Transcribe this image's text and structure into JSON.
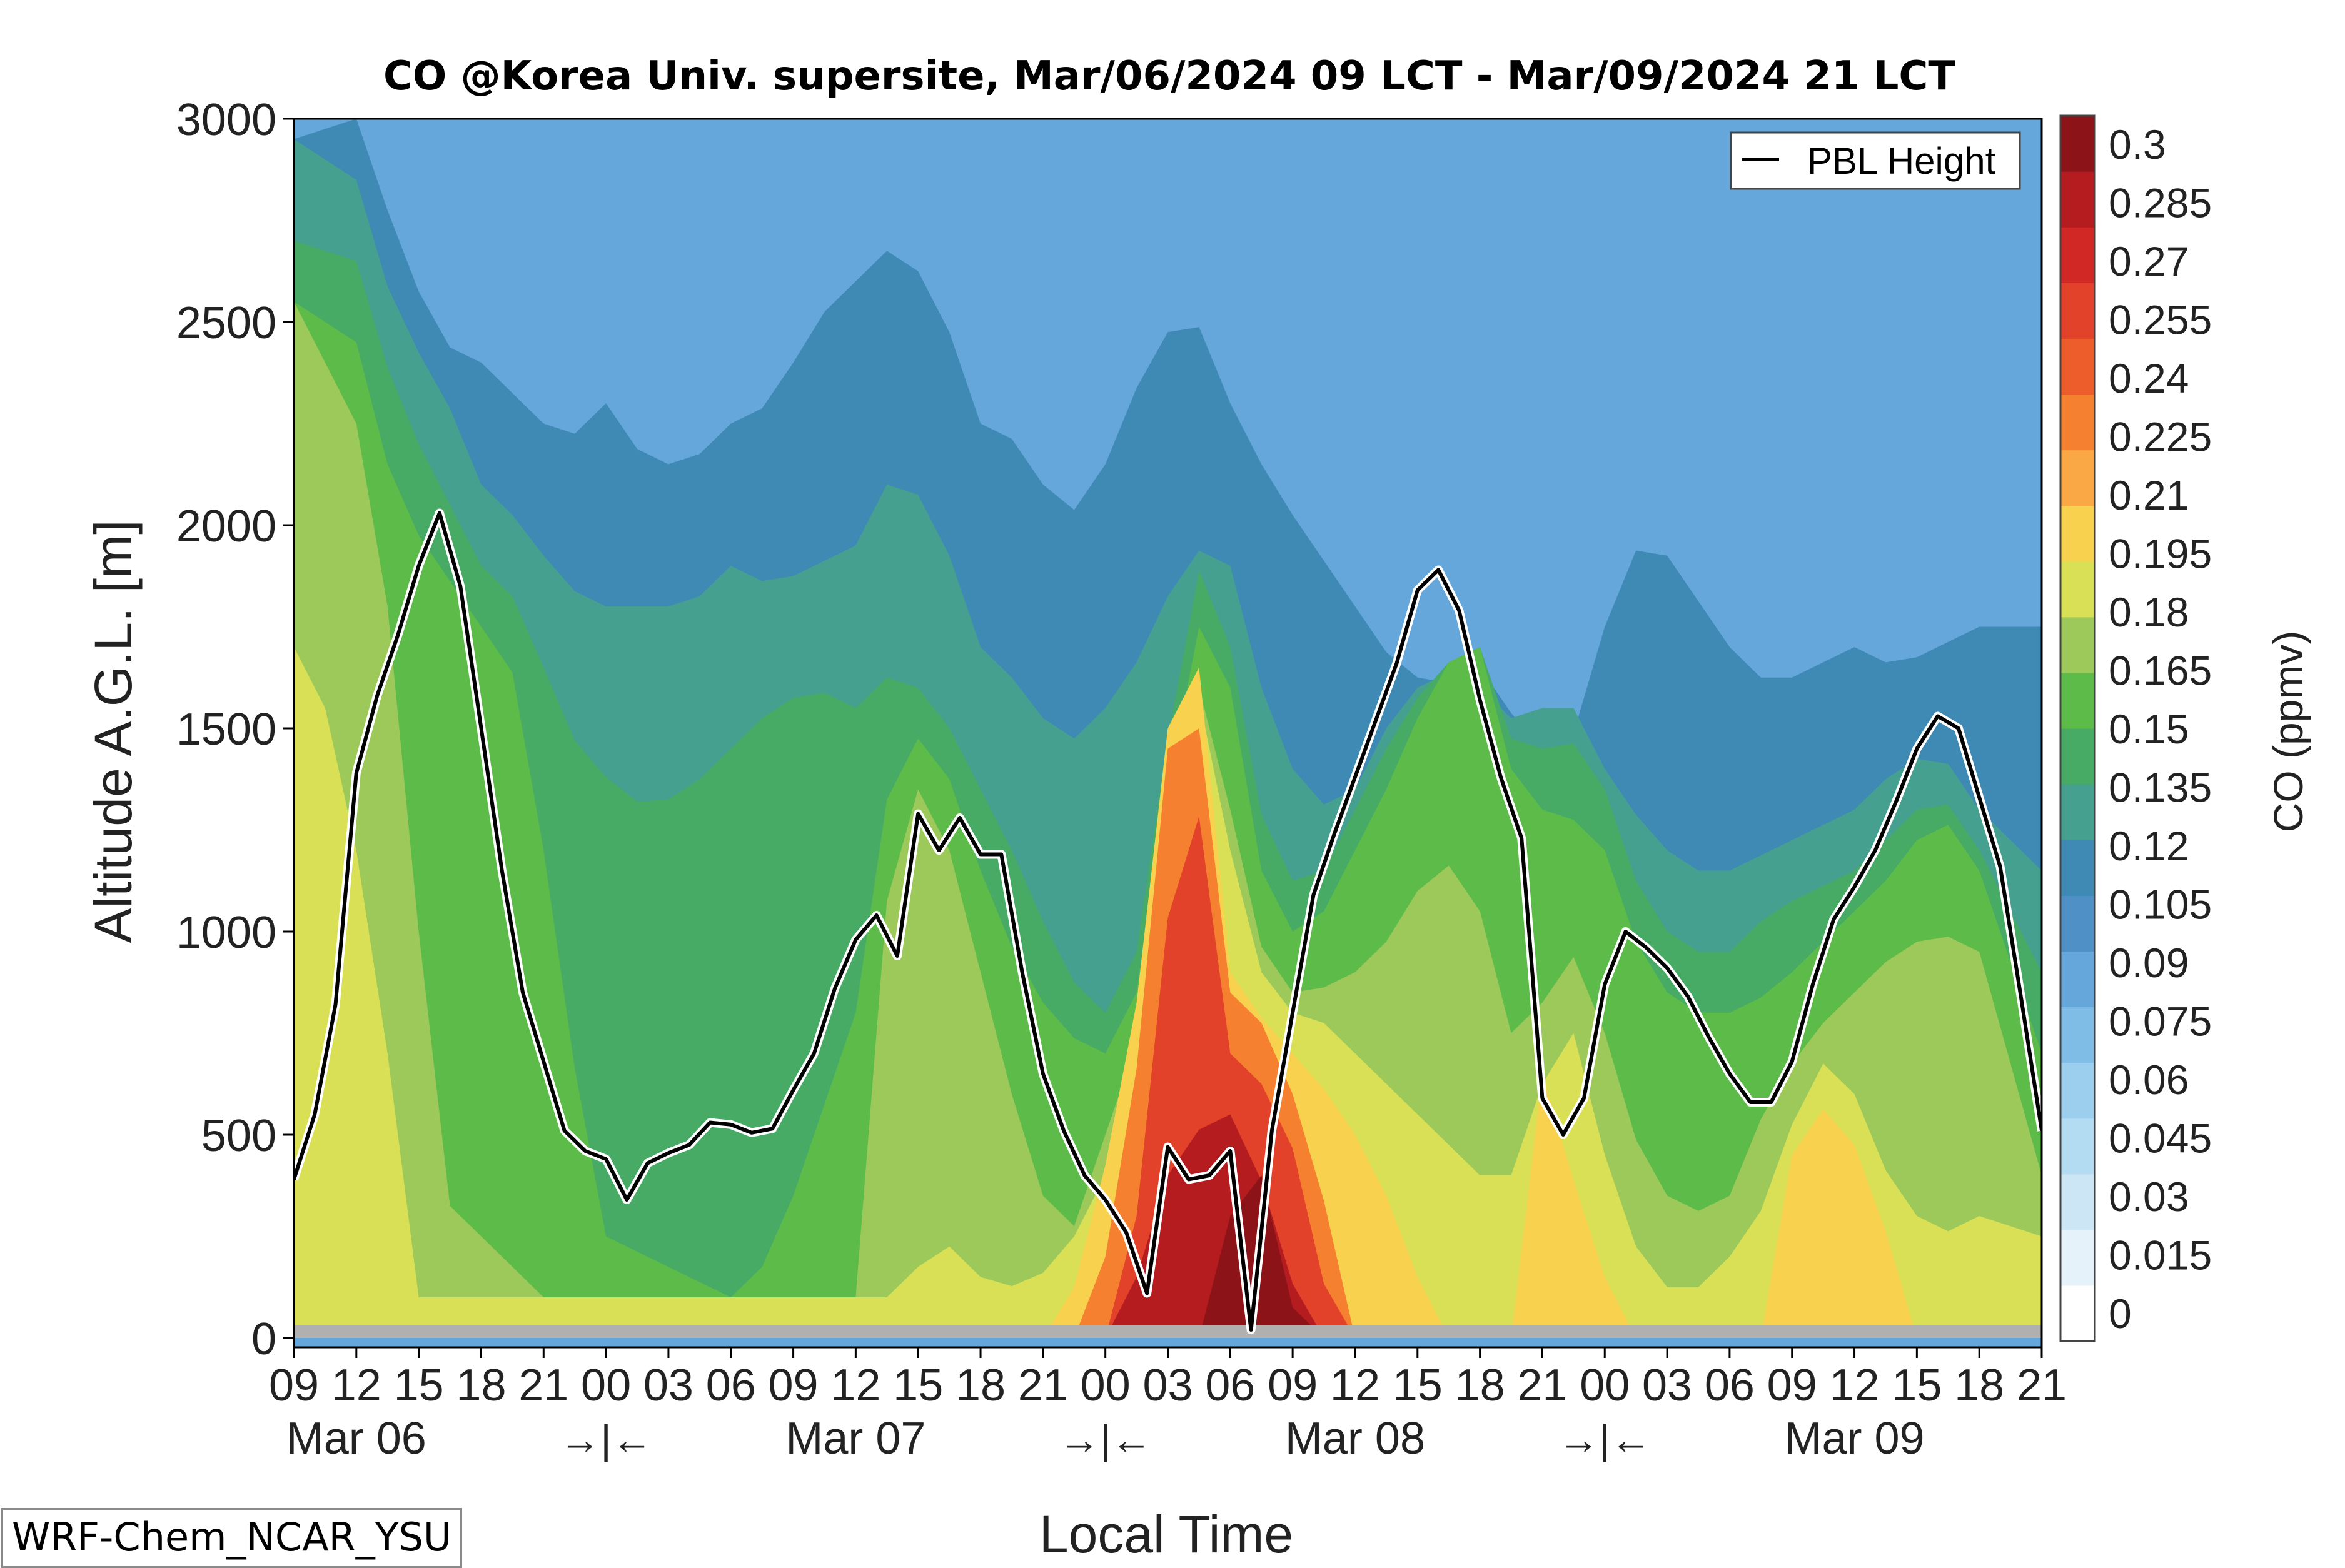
{
  "chart_data": {
    "type": "heatmap",
    "title": "CO @Korea Univ. supersite, Mar/06/2024 09 LCT - Mar/09/2024 21 LCT",
    "xlabel": "Local Time",
    "ylabel": "Altitude A.G.L. [m]",
    "ylim": [
      0,
      3000
    ],
    "y_ticks": [
      "0",
      "500",
      "1000",
      "1500",
      "2000",
      "2500",
      "3000"
    ],
    "x_tick_labels": [
      "09",
      "12",
      "15",
      "18",
      "21",
      "00",
      "03",
      "06",
      "09",
      "12",
      "15",
      "18",
      "21",
      "00",
      "03",
      "06",
      "09",
      "12",
      "15",
      "18",
      "21",
      "00",
      "03",
      "06",
      "09",
      "12",
      "15",
      "18",
      "21"
    ],
    "date_labels": [
      "Mar 06",
      "Mar 07",
      "Mar 08",
      "Mar 09"
    ],
    "day_separators": [
      "→|←",
      "→|←",
      "→|←"
    ],
    "colorbar": {
      "label": "CO (ppmv)",
      "tick_labels": [
        "0",
        "0.015",
        "0.03",
        "0.045",
        "0.06",
        "0.075",
        "0.09",
        "0.105",
        "0.12",
        "0.135",
        "0.15",
        "0.165",
        "0.18",
        "0.195",
        "0.21",
        "0.225",
        "0.24",
        "0.255",
        "0.27",
        "0.285",
        "0.3"
      ],
      "colors": [
        "#ffffff",
        "#e6f2fa",
        "#cce6f6",
        "#b3dbf1",
        "#9ccfee",
        "#80bde6",
        "#65a6db",
        "#4f90c6",
        "#3e8ab5",
        "#46a08f",
        "#47aa65",
        "#5dbb4a",
        "#9dc95a",
        "#d9e055",
        "#f8d24f",
        "#f9a845",
        "#f48030",
        "#ed5c2b",
        "#e2412a",
        "#d12725",
        "#b51c20",
        "#8c1318"
      ]
    },
    "legend": {
      "label": "PBL Height",
      "position": "top-right"
    },
    "watermark": "WRF-Chem_NCAR_YSU",
    "pbl_series": {
      "name": "PBL Height",
      "hours_since_start": [
        0,
        1,
        2,
        3,
        4,
        5,
        6,
        7,
        8,
        9,
        10,
        11,
        12,
        13,
        14,
        15,
        16,
        17,
        18,
        19,
        20,
        21,
        22,
        23,
        24,
        25,
        26,
        27,
        28,
        29,
        30,
        31,
        32,
        33,
        34,
        35,
        36,
        37,
        38,
        39,
        40,
        41,
        42,
        43,
        44,
        45,
        46,
        47,
        48,
        49,
        50,
        51,
        52,
        53,
        54,
        55,
        56,
        57,
        58,
        59,
        60,
        61,
        62,
        63,
        64,
        65,
        66,
        67,
        68,
        69,
        70,
        71,
        72,
        73,
        74,
        75,
        76,
        77,
        78,
        79,
        80,
        81,
        82,
        83,
        84
      ],
      "values_m": [
        390,
        550,
        820,
        1390,
        1580,
        1730,
        1900,
        2030,
        1850,
        1500,
        1150,
        850,
        680,
        510,
        460,
        440,
        340,
        430,
        455,
        475,
        530,
        525,
        505,
        515,
        610,
        700,
        860,
        980,
        1040,
        940,
        1290,
        1200,
        1280,
        1190,
        1190,
        900,
        650,
        510,
        400,
        340,
        260,
        110,
        470,
        390,
        400,
        460,
        20,
        510,
        800,
        1090,
        1240,
        1380,
        1520,
        1660,
        1840,
        1890,
        1790,
        1570,
        1380,
        1230,
        590,
        500,
        590,
        870,
        1000,
        960,
        910,
        840,
        740,
        650,
        580,
        580,
        680,
        870,
        1030,
        1110,
        1200,
        1320,
        1450,
        1530,
        1500,
        1330,
        1160,
        840,
        510
      ]
    },
    "time_range_hours": [
      0,
      84
    ],
    "grid": false
  }
}
